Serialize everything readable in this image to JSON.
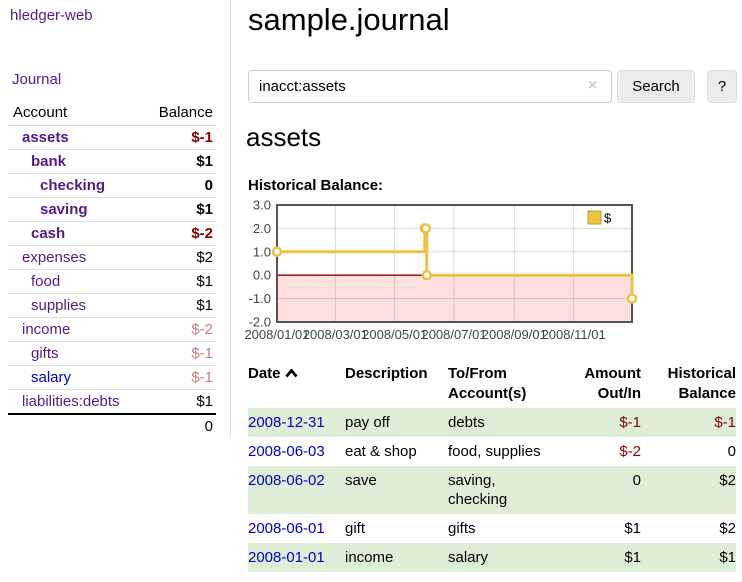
{
  "colors": {
    "link_purple": "#551a8b",
    "link_blue": "#0000cd",
    "negative_strong": "#8b0000",
    "negative_soft": "#c5817e",
    "row_stripe_green": "#dfeed7",
    "chart_line_gold": "#edc240"
  },
  "sidebar": {
    "app_title": "hledger-web",
    "journal_label": "Journal",
    "accounts": {
      "headers": {
        "account": "Account",
        "balance": "Balance"
      },
      "rows": [
        {
          "name": "assets",
          "depth": 1,
          "bold": true,
          "balance": "$-1",
          "balance_tone": "neg-strong",
          "link_tone": "purple"
        },
        {
          "name": "bank",
          "depth": 2,
          "bold": true,
          "balance": "$1",
          "balance_tone": "normal",
          "link_tone": "purple"
        },
        {
          "name": "checking",
          "depth": 3,
          "bold": true,
          "balance": "0",
          "balance_tone": "normal",
          "link_tone": "purple"
        },
        {
          "name": "saving",
          "depth": 3,
          "bold": true,
          "balance": "$1",
          "balance_tone": "normal",
          "link_tone": "purple"
        },
        {
          "name": "cash",
          "depth": 2,
          "bold": true,
          "balance": "$-2",
          "balance_tone": "neg-strong",
          "link_tone": "purple"
        },
        {
          "name": "expenses",
          "depth": 1,
          "bold": false,
          "balance": "$2",
          "balance_tone": "normal",
          "link_tone": "purple"
        },
        {
          "name": "food",
          "depth": 2,
          "bold": false,
          "balance": "$1",
          "balance_tone": "normal",
          "link_tone": "purple"
        },
        {
          "name": "supplies",
          "depth": 2,
          "bold": false,
          "balance": "$1",
          "balance_tone": "normal",
          "link_tone": "purple"
        },
        {
          "name": "income",
          "depth": 1,
          "bold": false,
          "balance": "$-2",
          "balance_tone": "neg-soft",
          "link_tone": "purple"
        },
        {
          "name": "gifts",
          "depth": 2,
          "bold": false,
          "balance": "$-1",
          "balance_tone": "neg-soft",
          "link_tone": "purple"
        },
        {
          "name": "salary",
          "depth": 2,
          "bold": false,
          "balance": "$-1",
          "balance_tone": "neg-soft",
          "link_tone": "blue"
        },
        {
          "name": "liabilities:debts",
          "depth": 1,
          "bold": false,
          "balance": "$1",
          "balance_tone": "normal",
          "link_tone": "purple"
        }
      ],
      "total": "0"
    }
  },
  "header": {
    "title": "sample.journal"
  },
  "search": {
    "value": "inacct:assets",
    "clear_icon": "×",
    "button_label": "Search",
    "help_label": "?"
  },
  "account_page": {
    "title": "assets",
    "chart_label": "Historical Balance:"
  },
  "chart_data": {
    "type": "line",
    "subtype": "step",
    "title": "Historical Balance",
    "series": [
      {
        "name": "$",
        "color": "#edc240",
        "points": [
          [
            "2008-01-01",
            1
          ],
          [
            "2008-06-01",
            2
          ],
          [
            "2008-06-02",
            2
          ],
          [
            "2008-06-03",
            0
          ],
          [
            "2008-12-31",
            -1
          ]
        ]
      }
    ],
    "x_range": [
      "2008-01-01",
      "2008-12-31"
    ],
    "y_range": [
      -2,
      3
    ],
    "y_tick_labels": [
      "3.0",
      "2.0",
      "1.0",
      "0.0",
      "-1.0",
      "-2.0"
    ],
    "y_tick_values": [
      3,
      2,
      1,
      0,
      -1,
      -2
    ],
    "x_tick_labels": [
      "2008/01/01",
      "2008/03/01",
      "2008/05/01",
      "2008/07/01",
      "2008/09/01",
      "2008/11/01"
    ],
    "x_tick_dates": [
      "2008-01-01",
      "2008-03-01",
      "2008-05-01",
      "2008-07-01",
      "2008-09-01",
      "2008-11-01"
    ],
    "legend": {
      "label": "$",
      "color": "#edc240",
      "position": "top-right"
    },
    "grid": true,
    "negative_region_color": "#ffdede",
    "zero_line_color": "#8b0000"
  },
  "register": {
    "headers": {
      "date": "Date",
      "description": "Description",
      "accounts": "To/From Account(s)",
      "amount": "Amount Out/In",
      "balance": "Historical Balance"
    },
    "sort": {
      "column": "date",
      "direction": "ascending"
    },
    "rows": [
      {
        "date": "2008-12-31",
        "description": "pay off",
        "accounts": "debts",
        "amount": "$-1",
        "amount_tone": "neg",
        "balance": "$-1",
        "balance_tone": "neg",
        "shaded": true
      },
      {
        "date": "2008-06-03",
        "description": "eat & shop",
        "accounts": "food, supplies",
        "amount": "$-2",
        "amount_tone": "neg",
        "balance": "0",
        "balance_tone": "normal",
        "shaded": false
      },
      {
        "date": "2008-06-02",
        "description": "save",
        "accounts": "saving, checking",
        "amount": "0",
        "amount_tone": "normal",
        "balance": "$2",
        "balance_tone": "normal",
        "shaded": true
      },
      {
        "date": "2008-06-01",
        "description": "gift",
        "accounts": "gifts",
        "amount": "$1",
        "amount_tone": "normal",
        "balance": "$2",
        "balance_tone": "normal",
        "shaded": false
      },
      {
        "date": "2008-01-01",
        "description": "income",
        "accounts": "salary",
        "amount": "$1",
        "amount_tone": "normal",
        "balance": "$1",
        "balance_tone": "normal",
        "shaded": true
      }
    ]
  }
}
